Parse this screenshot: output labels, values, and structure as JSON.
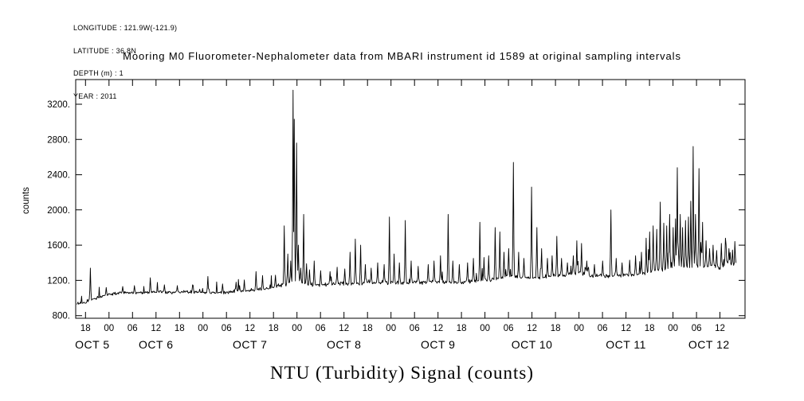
{
  "meta": {
    "lines": [
      "LONGITUDE : 121.9W(-121.9)",
      "LATITUDE : 36.8N",
      "DEPTH (m) : 1",
      "YEAR : 2011"
    ]
  },
  "colors": {
    "line": "#000000",
    "background": "#ffffff",
    "text": "#000000"
  },
  "chart_data": {
    "type": "line",
    "title": "Mooring M0 Fluorometer-Nephalometer data from MBARI instrument id 1589 at original sampling intervals",
    "xlabel": "NTU (Turbidity) Signal (counts)",
    "ylabel": "counts",
    "x_unit": "hours since 2011-10-05 00:00",
    "x_range": [
      15.5,
      186.4
    ],
    "y_range": [
      770,
      3480
    ],
    "grid": false,
    "legend": "none",
    "y_ticks": [
      {
        "value": 800,
        "label": "800."
      },
      {
        "value": 1200,
        "label": "1200."
      },
      {
        "value": 1600,
        "label": "1600."
      },
      {
        "value": 2000,
        "label": "2000."
      },
      {
        "value": 2400,
        "label": "2400."
      },
      {
        "value": 2800,
        "label": "2800."
      },
      {
        "value": 3200,
        "label": "3200."
      }
    ],
    "x_ticks": [
      {
        "t": 18,
        "label": "18"
      },
      {
        "t": 24,
        "label": "00"
      },
      {
        "t": 30,
        "label": "06"
      },
      {
        "t": 36,
        "label": "12"
      },
      {
        "t": 42,
        "label": "18"
      },
      {
        "t": 48,
        "label": "00"
      },
      {
        "t": 54,
        "label": "06"
      },
      {
        "t": 60,
        "label": "12"
      },
      {
        "t": 66,
        "label": "18"
      },
      {
        "t": 72,
        "label": "00"
      },
      {
        "t": 78,
        "label": "06"
      },
      {
        "t": 84,
        "label": "12"
      },
      {
        "t": 90,
        "label": "18"
      },
      {
        "t": 96,
        "label": "00"
      },
      {
        "t": 102,
        "label": "06"
      },
      {
        "t": 108,
        "label": "12"
      },
      {
        "t": 114,
        "label": "18"
      },
      {
        "t": 120,
        "label": "00"
      },
      {
        "t": 126,
        "label": "06"
      },
      {
        "t": 132,
        "label": "12"
      },
      {
        "t": 138,
        "label": "18"
      },
      {
        "t": 144,
        "label": "00"
      },
      {
        "t": 150,
        "label": "06"
      },
      {
        "t": 156,
        "label": "12"
      },
      {
        "t": 162,
        "label": "18"
      },
      {
        "t": 168,
        "label": "00"
      },
      {
        "t": 174,
        "label": "06"
      },
      {
        "t": 180,
        "label": "12"
      }
    ],
    "date_labels": [
      {
        "t": 19.75,
        "label": "OCT 5"
      },
      {
        "t": 36,
        "label": "OCT 6"
      },
      {
        "t": 60,
        "label": "OCT 7"
      },
      {
        "t": 84,
        "label": "OCT 8"
      },
      {
        "t": 108,
        "label": "OCT 9"
      },
      {
        "t": 132,
        "label": "OCT 10"
      },
      {
        "t": 156,
        "label": "OCT 11"
      },
      {
        "t": 177.2,
        "label": "OCT 12"
      }
    ],
    "series": {
      "name": "NTU turbidity signal",
      "encoding": "baseline anchors [t_hours,counts] + spike events [t_hours,peak_counts] + stochastic sample texture",
      "baseline_anchors": [
        [
          15.8,
          935
        ],
        [
          17,
          945
        ],
        [
          18,
          955
        ],
        [
          19,
          975
        ],
        [
          20,
          990
        ],
        [
          22,
          1015
        ],
        [
          24,
          1040
        ],
        [
          28,
          1060
        ],
        [
          32,
          1060
        ],
        [
          36,
          1070
        ],
        [
          40,
          1062
        ],
        [
          44,
          1070
        ],
        [
          48,
          1062
        ],
        [
          52,
          1058
        ],
        [
          56,
          1072
        ],
        [
          60,
          1085
        ],
        [
          64,
          1105
        ],
        [
          66,
          1125
        ],
        [
          68,
          1145
        ],
        [
          70,
          1165
        ],
        [
          71.5,
          1210
        ],
        [
          72.5,
          1190
        ],
        [
          74,
          1160
        ],
        [
          76,
          1150
        ],
        [
          80,
          1158
        ],
        [
          84,
          1168
        ],
        [
          88,
          1160
        ],
        [
          92,
          1172
        ],
        [
          96,
          1178
        ],
        [
          100,
          1168
        ],
        [
          104,
          1178
        ],
        [
          108,
          1182
        ],
        [
          112,
          1178
        ],
        [
          116,
          1188
        ],
        [
          120,
          1198
        ],
        [
          124,
          1225
        ],
        [
          126,
          1255
        ],
        [
          128,
          1238
        ],
        [
          132,
          1228
        ],
        [
          136,
          1248
        ],
        [
          140,
          1258
        ],
        [
          142,
          1275
        ],
        [
          144,
          1285
        ],
        [
          146,
          1265
        ],
        [
          148,
          1252
        ],
        [
          152,
          1248
        ],
        [
          156,
          1258
        ],
        [
          160,
          1272
        ],
        [
          162,
          1295
        ],
        [
          164,
          1315
        ],
        [
          166,
          1335
        ],
        [
          168,
          1345
        ],
        [
          170,
          1360
        ],
        [
          172,
          1350
        ],
        [
          174,
          1380
        ],
        [
          176,
          1360
        ],
        [
          178,
          1368
        ],
        [
          180,
          1340
        ],
        [
          182,
          1395
        ],
        [
          184.2,
          1375
        ]
      ],
      "spikes": [
        [
          19.2,
          1340
        ],
        [
          23.3,
          1120
        ],
        [
          27.5,
          1130
        ],
        [
          30.5,
          1140
        ],
        [
          34.5,
          1230
        ],
        [
          38.2,
          1150
        ],
        [
          41.5,
          1140
        ],
        [
          45.3,
          1150
        ],
        [
          49.2,
          1245
        ],
        [
          53,
          1160
        ],
        [
          56.5,
          1180
        ],
        [
          58.5,
          1205
        ],
        [
          61.6,
          1300
        ],
        [
          63.2,
          1255
        ],
        [
          66.5,
          1260
        ],
        [
          68.8,
          1820
        ],
        [
          69.6,
          1500
        ],
        [
          70.4,
          1420
        ],
        [
          70.95,
          3360
        ],
        [
          71.35,
          3030
        ],
        [
          71.85,
          2760
        ],
        [
          72.4,
          1600
        ],
        [
          72.9,
          1340
        ],
        [
          73.7,
          1950
        ],
        [
          74.4,
          1390
        ],
        [
          75.2,
          1320
        ],
        [
          76.4,
          1420
        ],
        [
          78.1,
          1310
        ],
        [
          80.5,
          1300
        ],
        [
          82.3,
          1350
        ],
        [
          84.2,
          1330
        ],
        [
          85.6,
          1520
        ],
        [
          86.9,
          1670
        ],
        [
          88.2,
          1600
        ],
        [
          89.5,
          1380
        ],
        [
          91,
          1340
        ],
        [
          92.6,
          1400
        ],
        [
          94.2,
          1380
        ],
        [
          95.6,
          1920
        ],
        [
          96.8,
          1500
        ],
        [
          98.2,
          1400
        ],
        [
          99.6,
          1880
        ],
        [
          101.2,
          1420
        ],
        [
          103,
          1360
        ],
        [
          105.5,
          1380
        ],
        [
          107,
          1420
        ],
        [
          108.6,
          1480
        ],
        [
          110.6,
          1950
        ],
        [
          111.8,
          1420
        ],
        [
          113.5,
          1380
        ],
        [
          115.5,
          1400
        ],
        [
          117,
          1450
        ],
        [
          118.7,
          1860
        ],
        [
          119.8,
          1460
        ],
        [
          121,
          1480
        ],
        [
          122.6,
          1800
        ],
        [
          123.8,
          1750
        ],
        [
          124.8,
          1520
        ],
        [
          126,
          1560
        ],
        [
          127.2,
          2540
        ],
        [
          128.6,
          1520
        ],
        [
          130,
          1450
        ],
        [
          131.9,
          2260
        ],
        [
          133.3,
          1800
        ],
        [
          134.4,
          1560
        ],
        [
          136,
          1450
        ],
        [
          137.2,
          1480
        ],
        [
          138.4,
          1700
        ],
        [
          139.6,
          1450
        ],
        [
          141,
          1400
        ],
        [
          142.5,
          1480
        ],
        [
          143.5,
          1650
        ],
        [
          144.6,
          1620
        ],
        [
          146,
          1420
        ],
        [
          148,
          1380
        ],
        [
          150,
          1420
        ],
        [
          152.2,
          2000
        ],
        [
          153.5,
          1450
        ],
        [
          155,
          1400
        ],
        [
          157,
          1430
        ],
        [
          158.5,
          1480
        ],
        [
          160,
          1520
        ],
        [
          161.2,
          1680
        ],
        [
          162.1,
          1750
        ],
        [
          163,
          1820
        ],
        [
          163.9,
          1780
        ],
        [
          164.8,
          2090
        ],
        [
          165.6,
          1850
        ],
        [
          166.4,
          1820
        ],
        [
          167.2,
          1950
        ],
        [
          168,
          1800
        ],
        [
          168.6,
          1900
        ],
        [
          169.1,
          2480
        ],
        [
          169.8,
          1950
        ],
        [
          170.5,
          1800
        ],
        [
          171.2,
          1880
        ],
        [
          172,
          1920
        ],
        [
          172.6,
          2100
        ],
        [
          173.1,
          2720
        ],
        [
          173.8,
          1950
        ],
        [
          174.7,
          2470
        ],
        [
          175.6,
          1860
        ],
        [
          176.4,
          1650
        ],
        [
          177.3,
          1560
        ],
        [
          178.2,
          1600
        ],
        [
          179.2,
          1540
        ],
        [
          180.3,
          1620
        ],
        [
          181.4,
          1680
        ],
        [
          182.3,
          1560
        ],
        [
          183.2,
          1500
        ],
        [
          183.9,
          1460
        ]
      ],
      "noise": {
        "seed": 20111005,
        "dt_hours": 0.15,
        "t_start": 15.8,
        "t_end": 184.2,
        "mid_start": 66,
        "late_start": 160,
        "amp_early": 26,
        "amp_mid": 30,
        "amp_late": 38,
        "microspike_p": 0.04,
        "microspike_amp": 120,
        "microspike_p_late": 0.11,
        "microspike_amp_late": 230
      }
    }
  }
}
